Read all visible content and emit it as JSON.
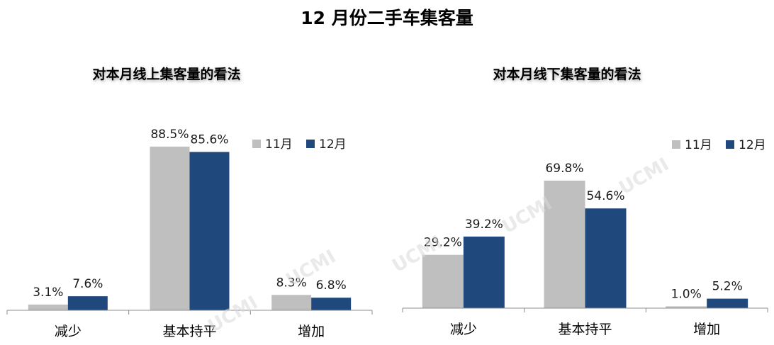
{
  "main_title": "12 月份二手车集客量",
  "watermark": "UCMI",
  "colors": {
    "nov": "#bfbfbf",
    "dec": "#1f497d",
    "axis": "#8c8c8c"
  },
  "chart_data": [
    {
      "type": "bar",
      "title": "对本月线上集客量的看法",
      "categories": [
        "减少",
        "基本持平",
        "增加"
      ],
      "series": [
        {
          "name": "11月",
          "values": [
            3.1,
            88.5,
            8.3
          ],
          "labels": [
            "3.1%",
            "88.5%",
            "8.3%"
          ]
        },
        {
          "name": "12月",
          "values": [
            7.6,
            85.6,
            6.8
          ],
          "labels": [
            "7.6%",
            "85.6%",
            "6.8%"
          ]
        }
      ],
      "ylim": [
        0,
        100
      ],
      "legend": "top-right",
      "grid": false
    },
    {
      "type": "bar",
      "title": "对本月线下集客量的看法",
      "categories": [
        "减少",
        "基本持平",
        "增加"
      ],
      "series": [
        {
          "name": "11月",
          "values": [
            29.2,
            69.8,
            1.0
          ],
          "labels": [
            "29.2%",
            "69.8%",
            "1.0%"
          ]
        },
        {
          "name": "12月",
          "values": [
            39.2,
            54.6,
            5.2
          ],
          "labels": [
            "39.2%",
            "54.6%",
            "5.2%"
          ]
        }
      ],
      "ylim": [
        0,
        100
      ],
      "legend": "top-right",
      "grid": false
    }
  ]
}
